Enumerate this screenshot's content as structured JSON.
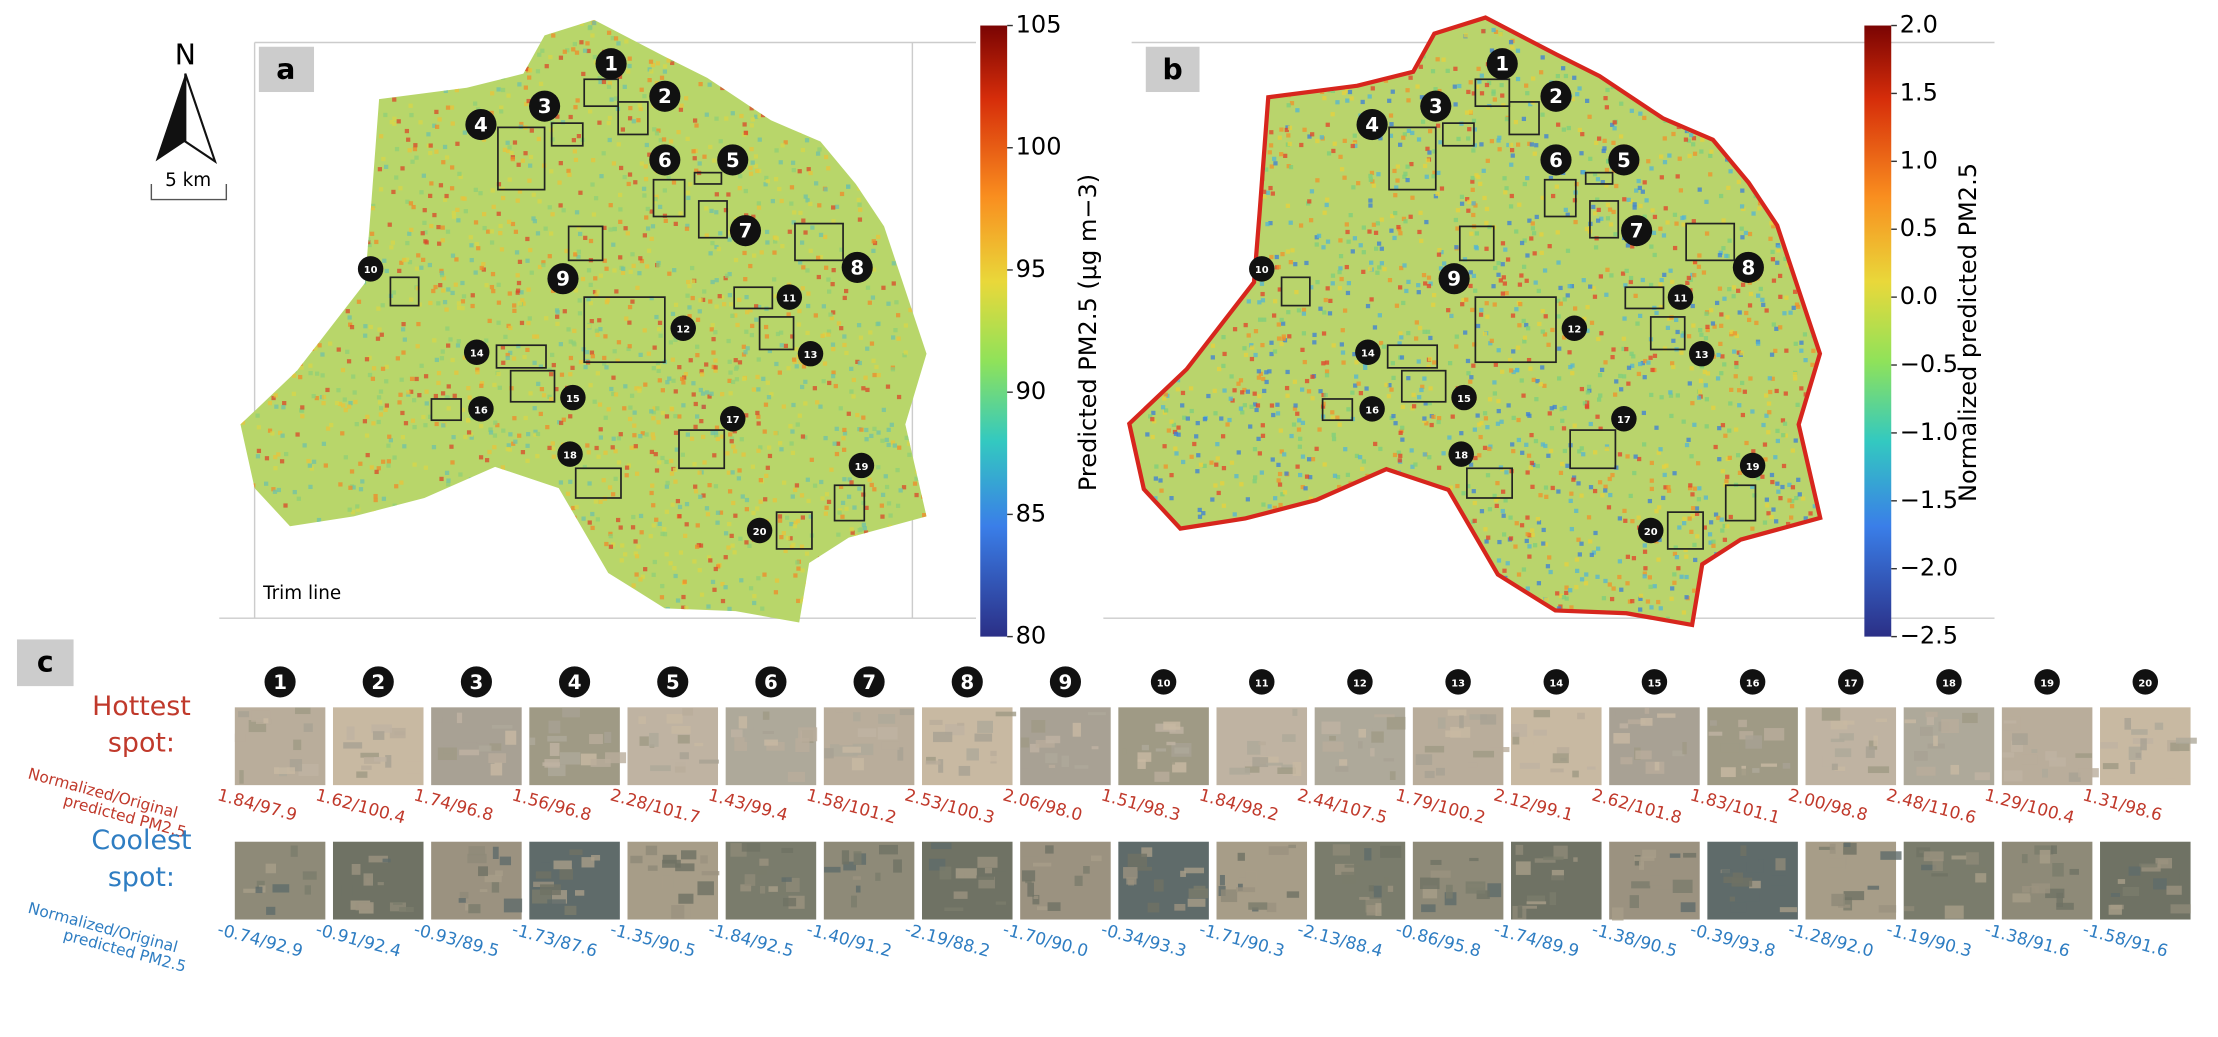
{
  "north_arrow": {
    "label": "N",
    "scale": "5 km"
  },
  "spots": [
    1,
    2,
    3,
    4,
    5,
    6,
    7,
    8,
    9,
    10,
    11,
    12,
    13,
    14,
    15,
    16,
    17,
    18,
    19,
    20
  ],
  "panel_a": {
    "label": "a",
    "trim_line": "Trim line",
    "colorbar": {
      "title": "Predicted PM2.5 (μg m−3)",
      "range": [
        80,
        105
      ],
      "ticks": [
        80,
        85,
        90,
        95,
        100,
        105
      ]
    }
  },
  "panel_b": {
    "label": "b",
    "colorbar": {
      "title": "Normalized predicted PM2.5",
      "range": [
        -2.5,
        2.0
      ],
      "ticks": [
        {
          "value": -2.5,
          "label": "−2.5"
        },
        {
          "value": -2.0,
          "label": "−2.0"
        },
        {
          "value": -1.5,
          "label": "−1.5"
        },
        {
          "value": -1.0,
          "label": "−1.0"
        },
        {
          "value": -0.5,
          "label": "−0.5"
        },
        {
          "value": 0.0,
          "label": "0.0"
        },
        {
          "value": 0.5,
          "label": "0.5"
        },
        {
          "value": 1.0,
          "label": "1.0"
        },
        {
          "value": 1.5,
          "label": "1.5"
        },
        {
          "value": 2.0,
          "label": "2.0"
        }
      ]
    }
  },
  "panel_c": {
    "label": "c",
    "hottest": {
      "title": [
        "Hottest",
        "spot:"
      ],
      "metric": [
        "Normalized/Original",
        "predicted PM2.5"
      ],
      "values": [
        "1.84/97.9",
        "1.62/100.4",
        "1.74/96.8",
        "1.56/96.8",
        "2.28/101.7",
        "1.43/99.4",
        "1.58/101.2",
        "2.53/100.3",
        "2.06/98.0",
        "1.51/98.3",
        "1.84/98.2",
        "2.44/107.5",
        "1.79/100.2",
        "2.12/99.1",
        "2.62/101.8",
        "1.83/101.1",
        "2.00/98.8",
        "2.48/110.6",
        "1.29/100.4",
        "1.31/98.6"
      ]
    },
    "coolest": {
      "title": [
        "Coolest",
        "spot:"
      ],
      "metric": [
        "Normalized/Original",
        "predicted PM2.5"
      ],
      "values": [
        "-0.74/92.9",
        "-0.91/92.4",
        "-0.93/89.5",
        "-1.73/87.6",
        "-1.35/90.5",
        "-1.84/92.5",
        "-1.40/91.2",
        "-2.19/88.2",
        "-1.70/90.0",
        "-0.34/93.3",
        "-1.71/90.3",
        "-2.13/88.4",
        "-0.86/95.8",
        "-1.74/89.9",
        "-1.38/90.5",
        "-0.39/93.8",
        "-1.28/92.0",
        "-1.19/90.3",
        "-1.38/91.6",
        "-1.58/91.6"
      ]
    }
  }
}
